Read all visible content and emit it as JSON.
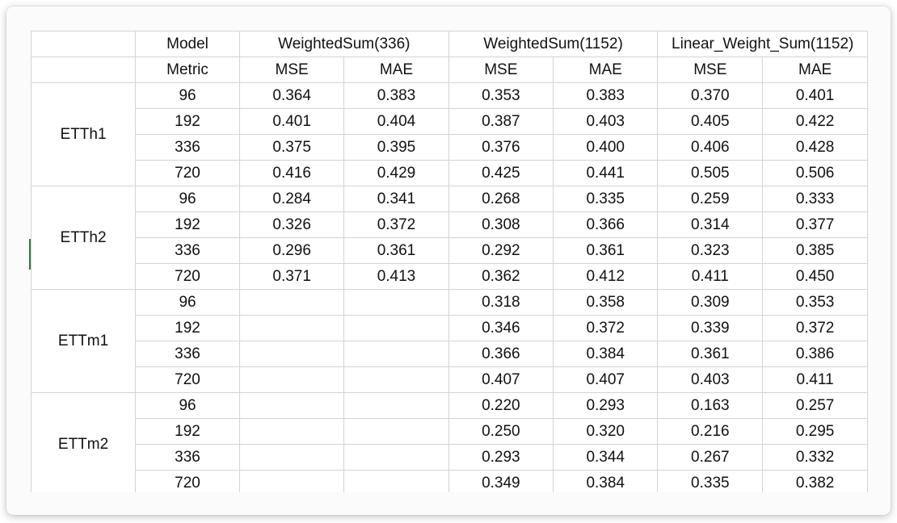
{
  "header": {
    "model_label": "Model",
    "metric_label": "Metric",
    "groups": [
      "WeightedSum(336)",
      "WeightedSum(1152)",
      "Linear_Weight_Sum(1152)"
    ],
    "sub": [
      "MSE",
      "MAE"
    ]
  },
  "sections": [
    {
      "name": "ETTh1",
      "rows": [
        {
          "h": "96",
          "v": [
            "0.364",
            "0.383",
            "0.353",
            "0.383",
            "0.370",
            "0.401"
          ]
        },
        {
          "h": "192",
          "v": [
            "0.401",
            "0.404",
            "0.387",
            "0.403",
            "0.405",
            "0.422"
          ]
        },
        {
          "h": "336",
          "v": [
            "0.375",
            "0.395",
            "0.376",
            "0.400",
            "0.406",
            "0.428"
          ]
        },
        {
          "h": "720",
          "v": [
            "0.416",
            "0.429",
            "0.425",
            "0.441",
            "0.505",
            "0.506"
          ]
        }
      ]
    },
    {
      "name": "ETTh2",
      "rows": [
        {
          "h": "96",
          "v": [
            "0.284",
            "0.341",
            "0.268",
            "0.335",
            "0.259",
            "0.333"
          ]
        },
        {
          "h": "192",
          "v": [
            "0.326",
            "0.372",
            "0.308",
            "0.366",
            "0.314",
            "0.377"
          ]
        },
        {
          "h": "336",
          "v": [
            "0.296",
            "0.361",
            "0.292",
            "0.361",
            "0.323",
            "0.385"
          ]
        },
        {
          "h": "720",
          "v": [
            "0.371",
            "0.413",
            "0.362",
            "0.412",
            "0.411",
            "0.450"
          ]
        }
      ]
    },
    {
      "name": "ETTm1",
      "rows": [
        {
          "h": "96",
          "v": [
            "",
            "",
            "0.318",
            "0.358",
            "0.309",
            "0.353"
          ]
        },
        {
          "h": "192",
          "v": [
            "",
            "",
            "0.346",
            "0.372",
            "0.339",
            "0.372"
          ]
        },
        {
          "h": "336",
          "v": [
            "",
            "",
            "0.366",
            "0.384",
            "0.361",
            "0.386"
          ]
        },
        {
          "h": "720",
          "v": [
            "",
            "",
            "0.407",
            "0.407",
            "0.403",
            "0.411"
          ]
        }
      ]
    },
    {
      "name": "ETTm2",
      "rows": [
        {
          "h": "96",
          "v": [
            "",
            "",
            "0.220",
            "0.293",
            "0.163",
            "0.257"
          ]
        },
        {
          "h": "192",
          "v": [
            "",
            "",
            "0.250",
            "0.320",
            "0.216",
            "0.295"
          ]
        },
        {
          "h": "336",
          "v": [
            "",
            "",
            "0.293",
            "0.344",
            "0.267",
            "0.332"
          ]
        },
        {
          "h": "720",
          "v": [
            "",
            "",
            "0.349",
            "0.384",
            "0.335",
            "0.382"
          ]
        }
      ]
    }
  ]
}
